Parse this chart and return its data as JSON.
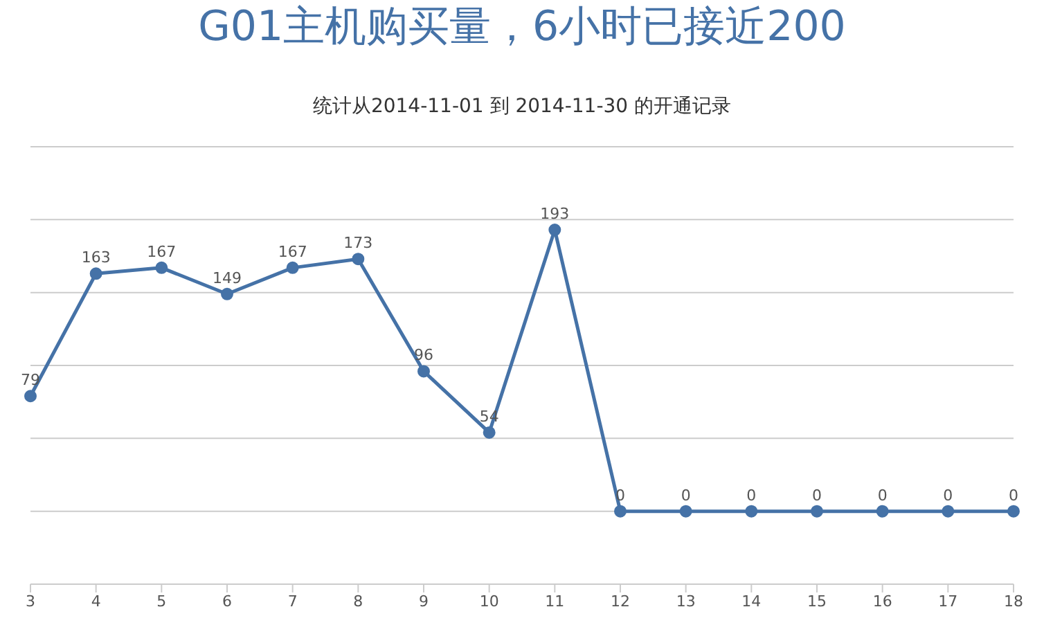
{
  "chart_data": {
    "type": "line",
    "title": "G01主机购买量，6小时已接近200",
    "subtitle": "统计从2014-11-01 到 2014-11-30 的开通记录",
    "categories": [
      "3",
      "4",
      "5",
      "6",
      "7",
      "8",
      "9",
      "10",
      "11",
      "12",
      "13",
      "14",
      "15",
      "16",
      "17",
      "18"
    ],
    "series": [
      {
        "color": "#4572a7",
        "values": [
          79,
          163,
          167,
          149,
          167,
          173,
          96,
          54,
          193,
          0,
          0,
          0,
          0,
          0,
          0,
          0
        ]
      }
    ],
    "ylim": [
      -50,
      250
    ],
    "yticks": [
      {
        "value": -50,
        "label": null
      },
      {
        "value": 0,
        "label": null
      },
      {
        "value": 50,
        "label": null
      },
      {
        "value": 100,
        "label": null
      },
      {
        "value": 150,
        "label": null
      },
      {
        "value": 200,
        "label": null
      },
      {
        "value": 250,
        "label": null
      }
    ],
    "grid": "y",
    "legend": false,
    "marker": "circle",
    "line_style": "solid",
    "data_labels": true
  }
}
